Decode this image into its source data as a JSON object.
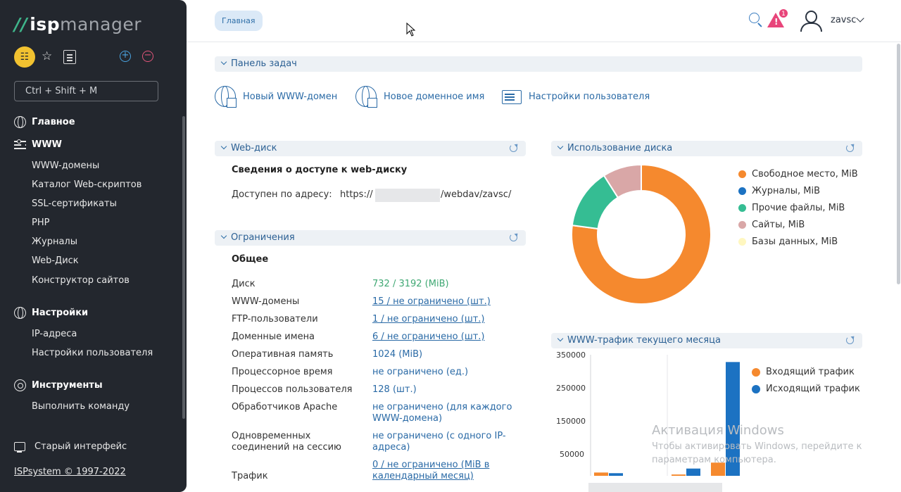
{
  "sidebar": {
    "logo_isp": "isp",
    "logo_manager": "manager",
    "search_placeholder": "Ctrl + Shift + M",
    "sections": [
      {
        "label": "Главное",
        "items": []
      },
      {
        "label": "WWW",
        "items": [
          "WWW-домены",
          "Каталог Web-скриптов",
          "SSL-сертификаты",
          "PHP",
          "Журналы",
          "Web-Диск",
          "Конструктор сайтов"
        ]
      },
      {
        "label": "Настройки",
        "items": [
          "IP-адреса",
          "Настройки пользователя"
        ]
      },
      {
        "label": "Инструменты",
        "items": [
          "Выполнить команду"
        ]
      }
    ],
    "old_interface": "Старый интерфейс",
    "copyright": "ISPsystem © 1997-2022"
  },
  "header": {
    "breadcrumb": "Главная",
    "alert_count": "1",
    "username": "zavsc"
  },
  "tasks_panel": {
    "title": "Панель задач",
    "items": [
      "Новый WWW-домен",
      "Новое доменное имя",
      "Настройки пользователя"
    ]
  },
  "webdisk": {
    "title": "Web-диск",
    "heading": "Сведения о доступе к web-диску",
    "address_label": "Доступен по адресу:",
    "address_prefix": "https://",
    "address_suffix": "/webdav/zavsc/"
  },
  "limits": {
    "title": "Ограничения",
    "heading": "Общее",
    "rows": [
      {
        "label": "Диск",
        "value": "732 / 3192 (MiB)"
      },
      {
        "label": "WWW-домены",
        "value": "15 / не ограничено (шт.)"
      },
      {
        "label": "FTP-пользователи",
        "value": "1 / не ограничено (шт.)"
      },
      {
        "label": "Доменные имена",
        "value": "6 / не ограничено (шт.)"
      },
      {
        "label": "Оперативная память",
        "value": "1024 (MiB)"
      },
      {
        "label": "Процессорное время",
        "value": "не ограничено (ед.)"
      },
      {
        "label": "Процессов пользователя",
        "value": "128 (шт.)"
      },
      {
        "label": "Обработчиков Apache",
        "value": "не ограничено (для каждого WWW-домена)"
      },
      {
        "label": "Одновременных соединений на сессию",
        "value": "не ограничено (с одного IP-адреса)"
      },
      {
        "label": "Трафик",
        "value": "0 / не ограничено (MiB в календарный месяц)"
      }
    ]
  },
  "disk_usage": {
    "title": "Использование диска",
    "colors": [
      "#f5892e",
      "#1c72c2",
      "#35bd93",
      "#d9a7a7",
      "#fff7c0"
    ]
  },
  "traffic": {
    "title": "WWW-трафик текущего месяца",
    "colors": [
      "#f5892e",
      "#1c72c2"
    ]
  },
  "chart_data": [
    {
      "type": "pie",
      "labels": [
        "Свободное место, MiB",
        "Журналы, MiB",
        "Прочие файлы, MiB",
        "Сайты, MiB",
        "Базы данных, MiB"
      ],
      "values": [
        2460,
        0,
        445,
        287,
        0
      ]
    },
    {
      "type": "bar",
      "series": [
        {
          "name": "Входящий трафик",
          "values": [
            10000,
            0,
            4000,
            40000
          ]
        },
        {
          "name": "Исходящий трафик",
          "values": [
            8000,
            0,
            22000,
            345000
          ]
        }
      ],
      "yticks": [
        "350000",
        "250000",
        "150000",
        "50000"
      ],
      "ylim": [
        0,
        350000
      ]
    }
  ],
  "watermark": {
    "title": "Активация Windows",
    "subtitle": "Чтобы активировать Windows, перейдите к параметрам компьютера."
  }
}
